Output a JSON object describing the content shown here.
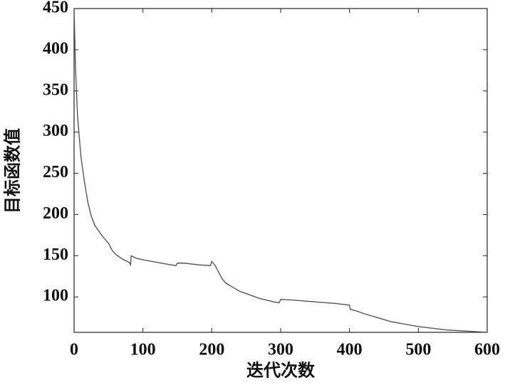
{
  "chart_data": {
    "type": "line",
    "xlabel": "迭代次数",
    "ylabel": "目标函数值",
    "x": [
      0,
      2,
      5,
      10,
      15,
      20,
      25,
      30,
      40,
      50,
      55,
      60,
      70,
      80,
      82,
      83,
      90,
      100,
      120,
      140,
      148,
      150,
      160,
      180,
      198,
      200,
      205,
      210,
      215,
      220,
      230,
      240,
      250,
      260,
      270,
      280,
      290,
      298,
      300,
      320,
      350,
      380,
      400,
      401,
      410,
      420,
      440,
      460,
      480,
      500,
      520,
      540,
      560,
      580,
      600
    ],
    "series": [
      {
        "name": "目标函数值",
        "color": "#555555",
        "values": [
          450,
          380,
          320,
          270,
          240,
          215,
          198,
          187,
          175,
          165,
          157,
          152,
          146,
          142,
          139,
          150,
          147,
          145,
          142,
          139,
          138,
          141,
          141,
          139,
          138,
          143,
          138,
          130,
          122,
          117,
          112,
          107,
          104,
          101,
          98,
          96,
          94,
          93,
          97,
          96,
          94,
          92,
          90,
          85,
          83,
          80,
          75,
          70,
          67,
          64,
          62,
          60,
          59,
          58,
          57
        ]
      }
    ],
    "xlim": [
      0,
      600
    ],
    "xticks": [
      0,
      100,
      200,
      300,
      400,
      500,
      600
    ],
    "ylim": [
      57,
      450
    ],
    "yticks": [
      100,
      150,
      200,
      250,
      300,
      350,
      400,
      450
    ]
  }
}
